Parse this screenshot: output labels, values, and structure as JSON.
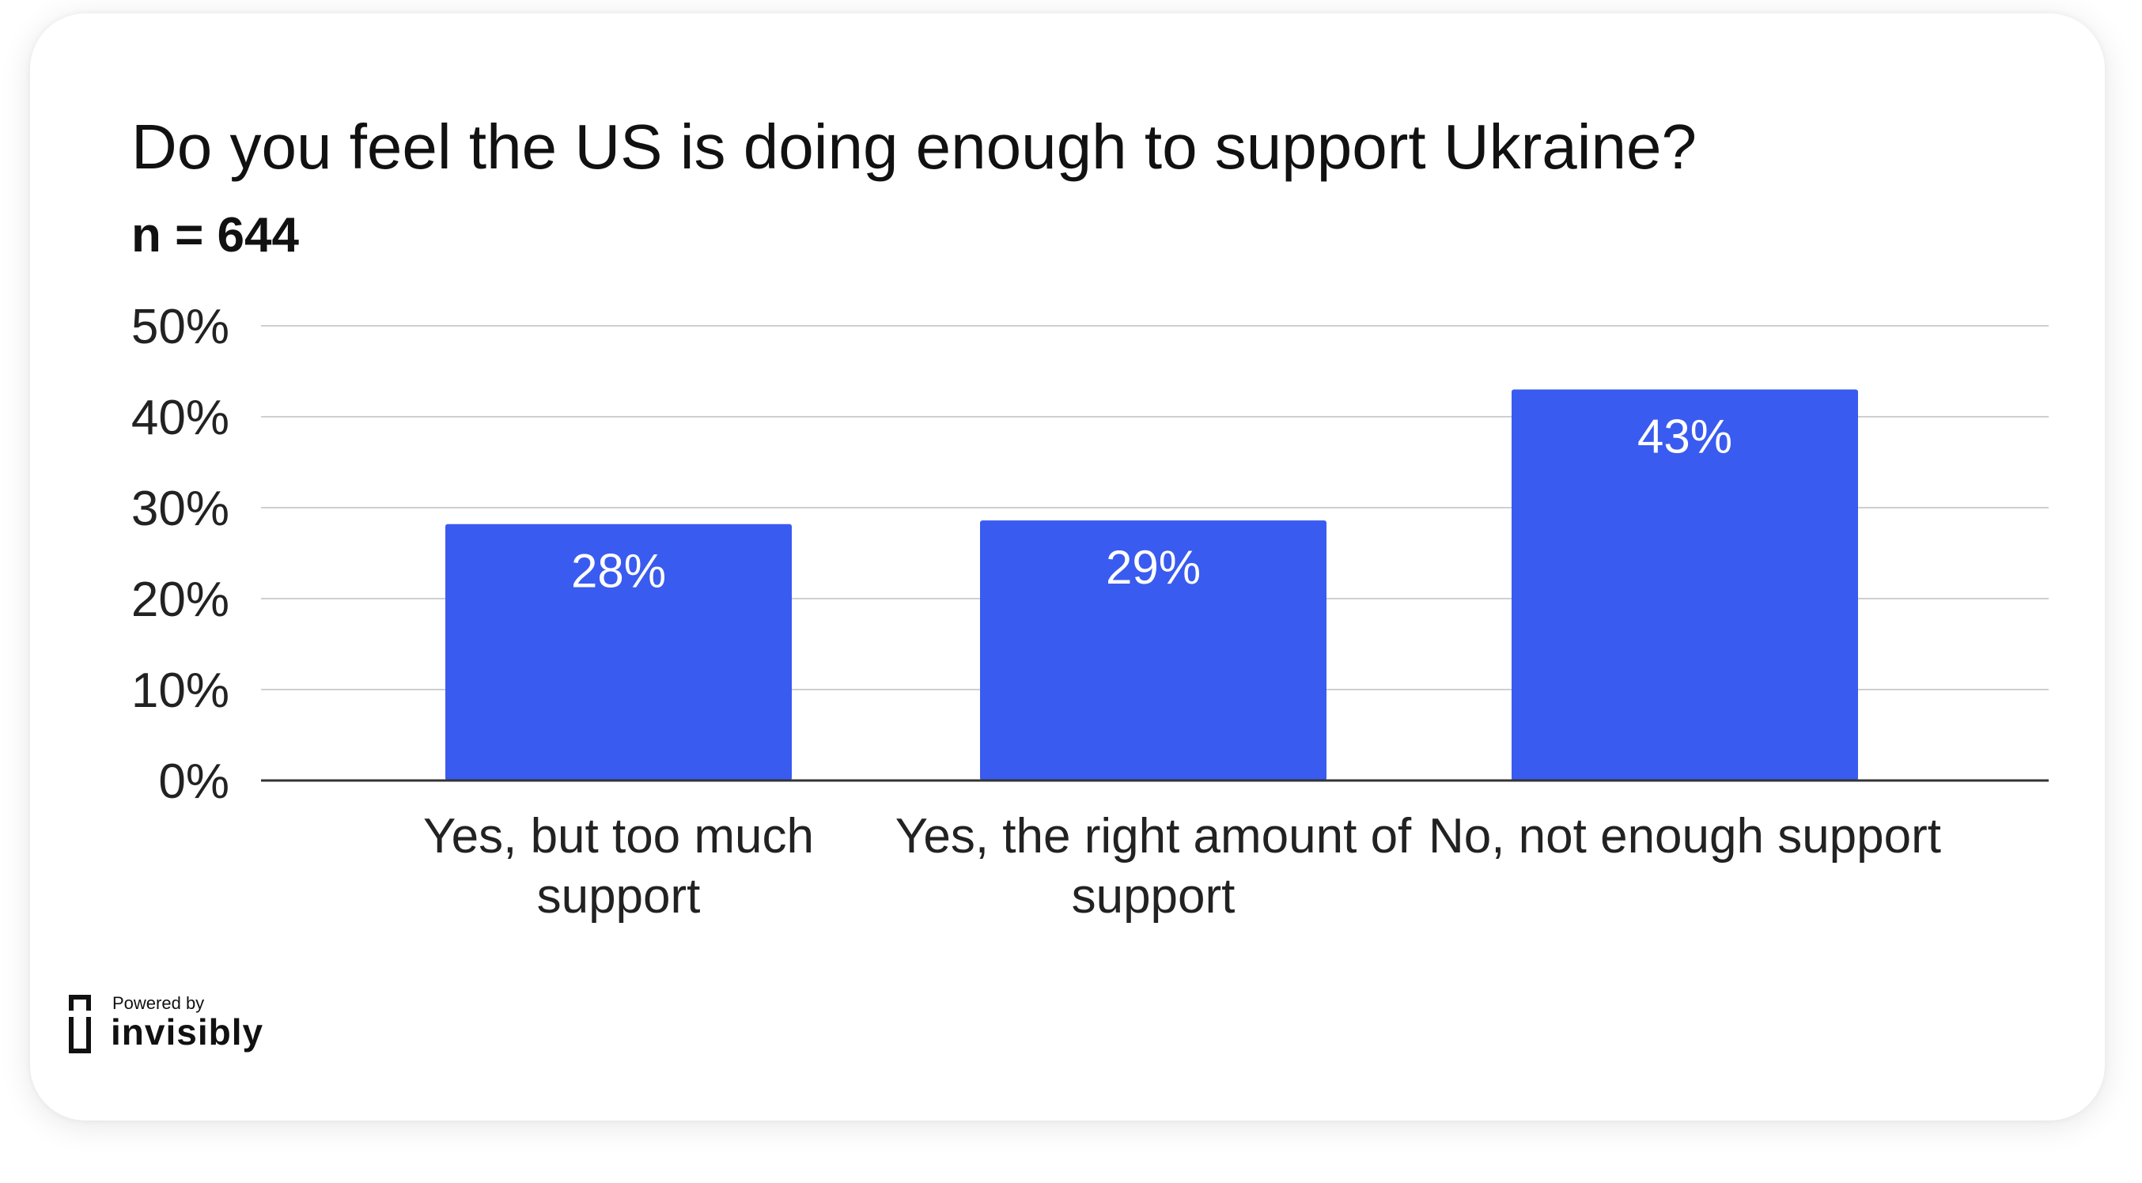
{
  "chart_data": {
    "type": "bar",
    "title": "Do you feel the US is doing enough to support Ukraine?",
    "subtitle": "n = 644",
    "categories": [
      [
        "Yes, but too much",
        "support"
      ],
      [
        "Yes, the right amount of",
        "support"
      ],
      [
        "No, not enough support"
      ]
    ],
    "values": [
      28.2,
      28.6,
      43
    ],
    "data_labels": [
      "28%",
      "29%",
      "43%"
    ],
    "ylim": [
      0,
      50
    ],
    "yticks": [
      0,
      10,
      20,
      30,
      40,
      50
    ],
    "ytick_labels": [
      "0%",
      "10%",
      "20%",
      "30%",
      "40%",
      "50%"
    ],
    "grid": true,
    "bar_color": "#3a5bef"
  },
  "branding": {
    "powered_by": "Powered by",
    "name": "invisibly"
  }
}
